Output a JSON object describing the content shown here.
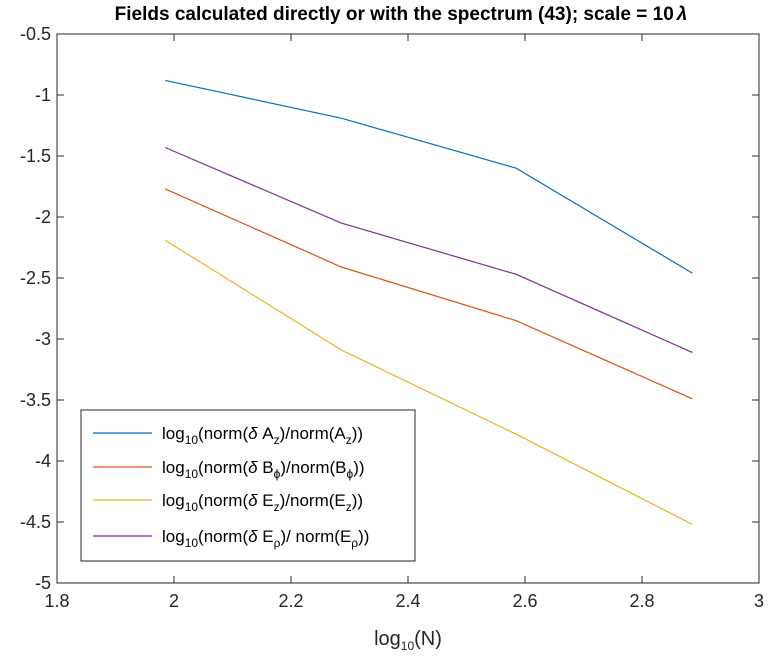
{
  "chart_data": {
    "type": "line",
    "title_main": "Fields calculated directly or with the spectrum (43); scale = 10",
    "title_symbol": "λ",
    "xlabel_base": "log",
    "xlabel_sub": "10",
    "xlabel_tail": "(N)",
    "xlim": [
      1.8,
      3
    ],
    "ylim": [
      -5,
      -0.5
    ],
    "xticks": [
      "1.8",
      "2",
      "2.2",
      "2.4",
      "2.6",
      "2.8",
      "3"
    ],
    "yticks": [
      "-0.5",
      "-1",
      "-1.5",
      "-2",
      "-2.5",
      "-3",
      "-3.5",
      "-4",
      "-4.5",
      "-5"
    ],
    "x": [
      1.985,
      2.286,
      2.585,
      2.886
    ],
    "grid": false,
    "legend_position": "bottom-left",
    "series": [
      {
        "values": [
          -0.88,
          -1.19,
          -1.6,
          -2.46
        ],
        "color": "#0072BD",
        "legend": [
          {
            "t": "log"
          },
          {
            "t": "10",
            "sub": true
          },
          {
            "t": "(norm("
          },
          {
            "t": "δ",
            "italic": true
          },
          {
            "t": " A"
          },
          {
            "t": "z",
            "sub": true
          },
          {
            "t": ")/norm(A"
          },
          {
            "t": "z",
            "sub": true
          },
          {
            "t": "))"
          }
        ]
      },
      {
        "values": [
          -1.77,
          -2.41,
          -2.85,
          -3.49
        ],
        "color": "#D95319",
        "legend": [
          {
            "t": "log"
          },
          {
            "t": "10",
            "sub": true
          },
          {
            "t": "(norm("
          },
          {
            "t": "δ",
            "italic": true
          },
          {
            "t": " B"
          },
          {
            "t": "ϕ",
            "sub": true
          },
          {
            "t": ")/norm(B"
          },
          {
            "t": "ϕ",
            "sub": true
          },
          {
            "t": "))"
          }
        ]
      },
      {
        "values": [
          -2.19,
          -3.09,
          -3.78,
          -4.52
        ],
        "color": "#EDB120",
        "legend": [
          {
            "t": "log"
          },
          {
            "t": "10",
            "sub": true
          },
          {
            "t": "(norm("
          },
          {
            "t": "δ",
            "italic": true
          },
          {
            "t": " E"
          },
          {
            "t": "z",
            "sub": true
          },
          {
            "t": ")/norm(E"
          },
          {
            "t": "z",
            "sub": true
          },
          {
            "t": "))"
          }
        ]
      },
      {
        "values": [
          -1.43,
          -2.05,
          -2.47,
          -3.11
        ],
        "color": "#7E2F8E",
        "legend": [
          {
            "t": "log"
          },
          {
            "t": "10",
            "sub": true
          },
          {
            "t": "(norm("
          },
          {
            "t": "δ",
            "italic": true
          },
          {
            "t": " E"
          },
          {
            "t": "ρ",
            "sub": true
          },
          {
            "t": ")/ norm(E"
          },
          {
            "t": "ρ",
            "sub": true
          },
          {
            "t": "))"
          }
        ]
      }
    ]
  }
}
